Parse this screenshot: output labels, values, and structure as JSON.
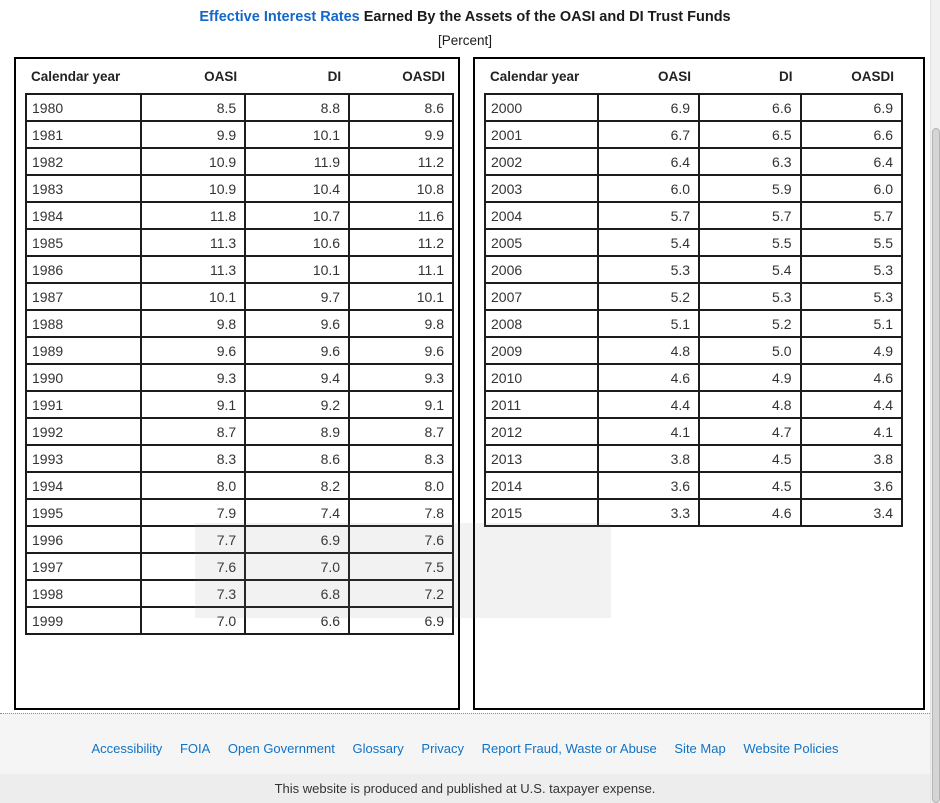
{
  "title": {
    "link_text": "Effective Interest Rates",
    "rest_text": " Earned By the Assets of the OASI and DI Trust Funds",
    "subtitle": "[Percent]"
  },
  "tables": {
    "columns": [
      "Calendar year",
      "OASI",
      "DI",
      "OASDI"
    ],
    "left": {
      "rows": [
        [
          "1980",
          "8.5",
          "8.8",
          "8.6"
        ],
        [
          "1981",
          "9.9",
          "10.1",
          "9.9"
        ],
        [
          "1982",
          "10.9",
          "11.9",
          "11.2"
        ],
        [
          "1983",
          "10.9",
          "10.4",
          "10.8"
        ],
        [
          "1984",
          "11.8",
          "10.7",
          "11.6"
        ],
        [
          "1985",
          "11.3",
          "10.6",
          "11.2"
        ],
        [
          "1986",
          "11.3",
          "10.1",
          "11.1"
        ],
        [
          "1987",
          "10.1",
          "9.7",
          "10.1"
        ],
        [
          "1988",
          "9.8",
          "9.6",
          "9.8"
        ],
        [
          "1989",
          "9.6",
          "9.6",
          "9.6"
        ],
        [
          "1990",
          "9.3",
          "9.4",
          "9.3"
        ],
        [
          "1991",
          "9.1",
          "9.2",
          "9.1"
        ],
        [
          "1992",
          "8.7",
          "8.9",
          "8.7"
        ],
        [
          "1993",
          "8.3",
          "8.6",
          "8.3"
        ],
        [
          "1994",
          "8.0",
          "8.2",
          "8.0"
        ],
        [
          "1995",
          "7.9",
          "7.4",
          "7.8"
        ],
        [
          "1996",
          "7.7",
          "6.9",
          "7.6"
        ],
        [
          "1997",
          "7.6",
          "7.0",
          "7.5"
        ],
        [
          "1998",
          "7.3",
          "6.8",
          "7.2"
        ],
        [
          "1999",
          "7.0",
          "6.6",
          "6.9"
        ]
      ]
    },
    "right": {
      "rows": [
        [
          "2000",
          "6.9",
          "6.6",
          "6.9"
        ],
        [
          "2001",
          "6.7",
          "6.5",
          "6.6"
        ],
        [
          "2002",
          "6.4",
          "6.3",
          "6.4"
        ],
        [
          "2003",
          "6.0",
          "5.9",
          "6.0"
        ],
        [
          "2004",
          "5.7",
          "5.7",
          "5.7"
        ],
        [
          "2005",
          "5.4",
          "5.5",
          "5.5"
        ],
        [
          "2006",
          "5.3",
          "5.4",
          "5.3"
        ],
        [
          "2007",
          "5.2",
          "5.3",
          "5.3"
        ],
        [
          "2008",
          "5.1",
          "5.2",
          "5.1"
        ],
        [
          "2009",
          "4.8",
          "5.0",
          "4.9"
        ],
        [
          "2010",
          "4.6",
          "4.9",
          "4.6"
        ],
        [
          "2011",
          "4.4",
          "4.8",
          "4.4"
        ],
        [
          "2012",
          "4.1",
          "4.7",
          "4.1"
        ],
        [
          "2013",
          "3.8",
          "4.5",
          "3.8"
        ],
        [
          "2014",
          "3.6",
          "4.5",
          "3.6"
        ],
        [
          "2015",
          "3.3",
          "4.6",
          "3.4"
        ]
      ]
    }
  },
  "footer": {
    "links": [
      "Accessibility",
      "FOIA",
      "Open Government",
      "Glossary",
      "Privacy",
      "Report Fraud, Waste or Abuse",
      "Site Map",
      "Website Policies"
    ],
    "taxpayer_notice": "This website is produced and published at U.S. taxpayer expense."
  },
  "colors": {
    "link_blue": "#1467c8",
    "link_blue_footer": "#0f72c6",
    "table_border": "#1c1c1c",
    "footer_bg": "#f5f5f5",
    "footer_bottom_bg": "#ededed",
    "scrollbar_track": "#f1f1f1",
    "scrollbar_thumb": "#d5d5d5"
  }
}
